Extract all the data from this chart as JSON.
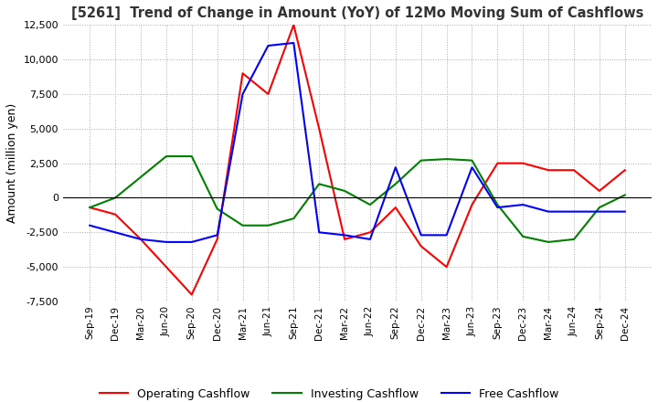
{
  "title": "[5261]  Trend of Change in Amount (YoY) of 12Mo Moving Sum of Cashflows",
  "ylabel": "Amount (million yen)",
  "ylim": [
    -7500,
    12500
  ],
  "yticks": [
    -7500,
    -5000,
    -2500,
    0,
    2500,
    5000,
    7500,
    10000,
    12500
  ],
  "x_labels": [
    "Sep-19",
    "Dec-19",
    "Mar-20",
    "Jun-20",
    "Sep-20",
    "Dec-20",
    "Mar-21",
    "Jun-21",
    "Sep-21",
    "Dec-21",
    "Mar-22",
    "Jun-22",
    "Sep-22",
    "Dec-22",
    "Mar-23",
    "Jun-23",
    "Sep-23",
    "Dec-23",
    "Mar-24",
    "Jun-24",
    "Sep-24",
    "Dec-24"
  ],
  "operating": [
    -700,
    -1200,
    -3000,
    -5000,
    -7000,
    -3000,
    9000,
    7500,
    12500,
    5000,
    -3000,
    -2500,
    -700,
    -3500,
    -5000,
    -500,
    2500,
    2500,
    2000,
    2000,
    500,
    2000
  ],
  "investing": [
    -700,
    0,
    1500,
    3000,
    3000,
    -800,
    -2000,
    -2000,
    -1500,
    1000,
    500,
    -500,
    1000,
    2700,
    2800,
    2700,
    -500,
    -2800,
    -3200,
    -3000,
    -700,
    200
  ],
  "free": [
    -2000,
    -2500,
    -3000,
    -3200,
    -3200,
    -2700,
    7500,
    11000,
    11200,
    -2500,
    -2700,
    -3000,
    2200,
    -2700,
    -2700,
    2200,
    -700,
    -500,
    -1000,
    -1000,
    -1000,
    -1000
  ],
  "operating_color": "#ff0000",
  "investing_color": "#008000",
  "free_color": "#0000ff",
  "bg_color": "#ffffff",
  "grid_color": "#aaaaaa"
}
